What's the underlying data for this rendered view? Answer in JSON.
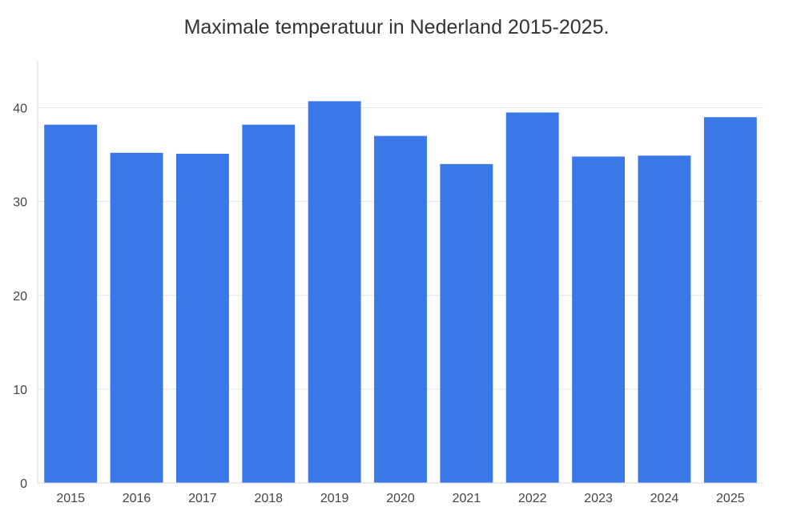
{
  "chart_data": {
    "type": "bar",
    "title": "Maximale temperatuur in Nederland 2015-2025.",
    "xlabel": "",
    "ylabel": "",
    "categories": [
      "2015",
      "2016",
      "2017",
      "2018",
      "2019",
      "2020",
      "2021",
      "2022",
      "2023",
      "2024",
      "2025"
    ],
    "values": [
      38.2,
      35.2,
      35.1,
      38.2,
      40.7,
      37.0,
      34.0,
      39.5,
      34.8,
      34.9,
      39.0
    ],
    "ylim": [
      0,
      45
    ],
    "yticks": [
      "0",
      "10",
      "20",
      "30",
      "40"
    ],
    "ytick_values": [
      0,
      10,
      20,
      30,
      40
    ],
    "grid": true,
    "legend": "none",
    "colors": {
      "bar": "#3b78e7",
      "grid": "#e6e6e6",
      "axis": "#d9d9d9"
    }
  }
}
